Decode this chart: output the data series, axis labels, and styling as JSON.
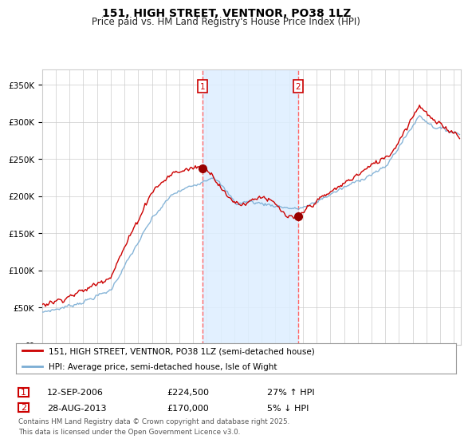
{
  "title": "151, HIGH STREET, VENTNOR, PO38 1LZ",
  "subtitle": "Price paid vs. HM Land Registry's House Price Index (HPI)",
  "ylabel_ticks": [
    "£0",
    "£50K",
    "£100K",
    "£150K",
    "£200K",
    "£250K",
    "£300K",
    "£350K"
  ],
  "ytick_vals": [
    0,
    50000,
    100000,
    150000,
    200000,
    250000,
    300000,
    350000
  ],
  "ylim": [
    0,
    370000
  ],
  "sale1_date": "12-SEP-2006",
  "sale1_price": 224500,
  "sale1_hpi_pct": "27%",
  "sale1_hpi_dir": "↑",
  "sale1_label": "1",
  "sale1_year": 2006.708,
  "sale2_date": "28-AUG-2013",
  "sale2_price": 170000,
  "sale2_hpi_pct": "5%",
  "sale2_hpi_dir": "↓",
  "sale2_label": "2",
  "sale2_year": 2013.646,
  "legend_red": "151, HIGH STREET, VENTNOR, PO38 1LZ (semi-detached house)",
  "legend_blue": "HPI: Average price, semi-detached house, Isle of Wight",
  "footer": "Contains HM Land Registry data © Crown copyright and database right 2025.\nThis data is licensed under the Open Government Licence v3.0.",
  "red_color": "#cc0000",
  "blue_color": "#7aadd4",
  "shade_color": "#ddeeff",
  "vline_color": "#ff6666",
  "background_color": "#ffffff",
  "grid_color": "#cccccc",
  "sale_dot_color": "#990000"
}
